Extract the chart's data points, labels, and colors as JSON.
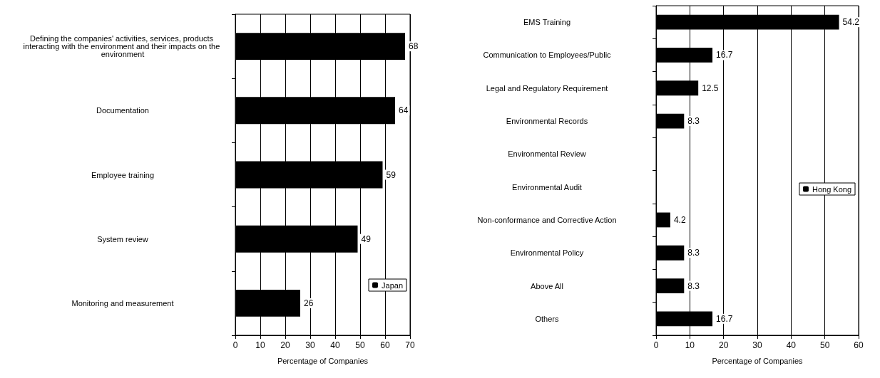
{
  "chart_data": [
    {
      "type": "bar",
      "orientation": "horizontal",
      "categories": [
        "Defining the companies' activities, services, products interacting with the environment and their impacts on the environment",
        "Documentation",
        "Employee training",
        "System review",
        "Monitoring and measurement"
      ],
      "series": [
        {
          "name": "Japan",
          "color": "#000000",
          "values": [
            68,
            64,
            59,
            49,
            26
          ]
        }
      ],
      "xlabel": "Percentage of Companies",
      "xlim": [
        0,
        70
      ],
      "xticks": [
        0,
        10,
        20,
        30,
        40,
        50,
        60,
        70
      ],
      "grid": "x",
      "legend": "bottom right",
      "data_labels": true
    },
    {
      "type": "bar",
      "orientation": "horizontal",
      "categories": [
        "EMS Training",
        "Communication to Employees/Public",
        "Legal and Regulatory Requirement",
        "Environmental Records",
        "Environmental Review",
        "Environmental Audit",
        "Non-conformance and Corrective Action",
        "Environmental Policy",
        "Above All",
        "Others"
      ],
      "series": [
        {
          "name": "Hong Kong",
          "color": "#000000",
          "values": [
            54.2,
            16.7,
            12.5,
            8.3,
            null,
            null,
            4.2,
            8.3,
            8.3,
            16.7
          ]
        }
      ],
      "xlabel": "Percentage of Companies",
      "xlim": [
        0,
        60
      ],
      "xticks": [
        0,
        10,
        20,
        30,
        40,
        50,
        60
      ],
      "grid": "x",
      "legend": "right",
      "data_labels": true
    }
  ]
}
